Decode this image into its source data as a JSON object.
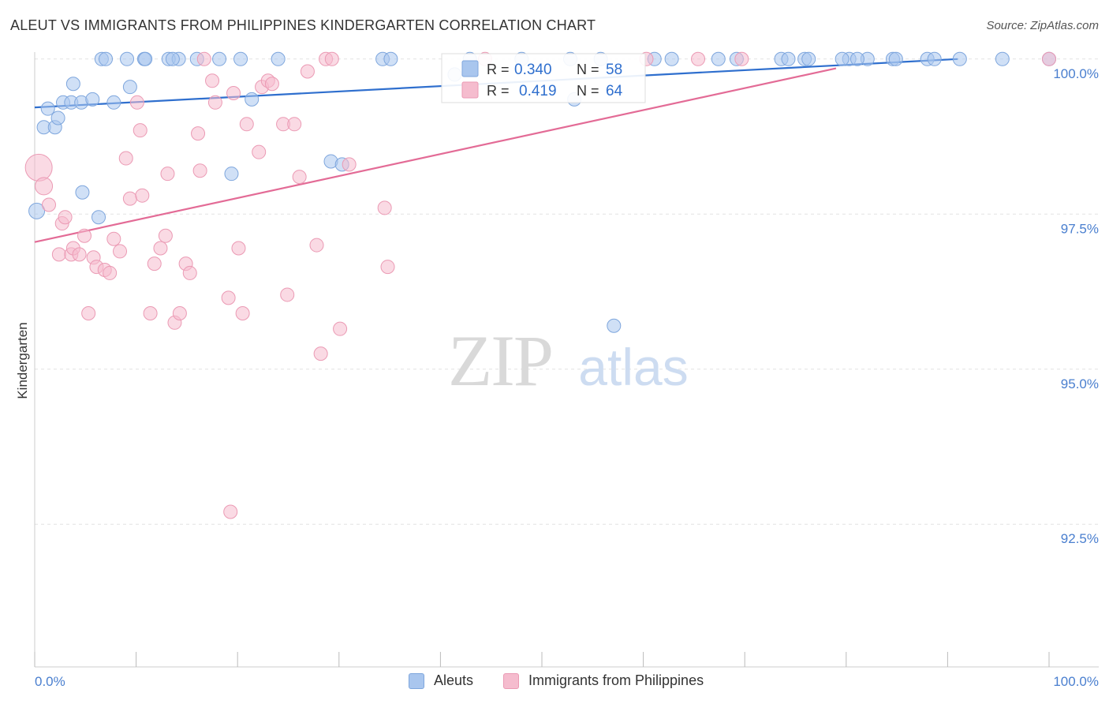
{
  "header": {
    "title": "ALEUT VS IMMIGRANTS FROM PHILIPPINES KINDERGARTEN CORRELATION CHART",
    "source": "Source: ZipAtlas.com"
  },
  "watermark": {
    "zip": "ZIP",
    "atlas": "atlas"
  },
  "colors": {
    "blue_fill": "#a9c6ee",
    "blue_stroke": "#7ea6dd",
    "blue_line": "#2f6fce",
    "pink_fill": "#f5bcce",
    "pink_stroke": "#eb9ab4",
    "pink_line": "#e36b96",
    "tick_label": "#4a7fcf",
    "grid": "#e2e2e2"
  },
  "stats_box": {
    "rows": [
      {
        "r_label": "R =",
        "r_value": "0.340",
        "n_label": "N =",
        "n_value": "58",
        "series": "blue"
      },
      {
        "r_label": "R =",
        "r_value": "0.419",
        "n_label": "N =",
        "n_value": "64",
        "series": "pink"
      }
    ]
  },
  "legend": [
    {
      "label": "Aleuts",
      "series": "blue"
    },
    {
      "label": "Immigrants from Philippines",
      "series": "pink"
    }
  ],
  "chart_data": {
    "type": "scatter",
    "title": "ALEUT VS IMMIGRANTS FROM PHILIPPINES KINDERGARTEN CORRELATION CHART",
    "xlabel": "",
    "ylabel": "Kindergarten",
    "xlim": [
      0,
      100
    ],
    "ylim": [
      90.2,
      100.15
    ],
    "x_tick_labels": [
      {
        "value": 0,
        "label": "0.0%"
      },
      {
        "value": 100,
        "label": "100.0%"
      }
    ],
    "x_minor_ticks": [
      0,
      10,
      20,
      30,
      40,
      50,
      60,
      70,
      80,
      90,
      100
    ],
    "y_ticks": [
      {
        "value": 100,
        "label": "100.0%"
      },
      {
        "value": 97.5,
        "label": "97.5%"
      },
      {
        "value": 95,
        "label": "95.0%"
      },
      {
        "value": 92.5,
        "label": "92.5%"
      }
    ],
    "grid": true,
    "legend_position": "bottom-center",
    "series": [
      {
        "name": "Aleuts",
        "color": "#a9c6ee",
        "R": 0.34,
        "N": 58,
        "trend": {
          "x0": 0,
          "y0": 99.22,
          "x1": 91,
          "y1": 100.0
        },
        "points": [
          [
            0.2,
            97.55
          ],
          [
            1.3,
            99.2
          ],
          [
            0.9,
            98.9
          ],
          [
            2.0,
            98.9
          ],
          [
            2.3,
            99.05
          ],
          [
            2.8,
            99.3
          ],
          [
            3.6,
            99.3
          ],
          [
            3.8,
            99.6
          ],
          [
            4.6,
            99.3
          ],
          [
            5.7,
            99.35
          ],
          [
            7.8,
            99.3
          ],
          [
            4.7,
            97.85
          ],
          [
            6.3,
            97.45
          ],
          [
            9.4,
            99.55
          ],
          [
            21.4,
            99.35
          ],
          [
            19.4,
            98.15
          ],
          [
            29.2,
            98.35
          ],
          [
            30.3,
            98.3
          ],
          [
            6.6,
            100.0
          ],
          [
            7.0,
            100.0
          ],
          [
            9.1,
            100.0
          ],
          [
            10.8,
            100.0
          ],
          [
            10.9,
            100.0
          ],
          [
            13.2,
            100.0
          ],
          [
            14.2,
            100.0
          ],
          [
            13.6,
            100.0
          ],
          [
            16.0,
            100.0
          ],
          [
            18.2,
            100.0
          ],
          [
            20.3,
            100.0
          ],
          [
            24.0,
            100.0
          ],
          [
            34.3,
            100.0
          ],
          [
            35.1,
            100.0
          ],
          [
            42.9,
            100.0
          ],
          [
            48.0,
            100.0
          ],
          [
            52.8,
            100.0
          ],
          [
            55.8,
            100.0
          ],
          [
            61.1,
            100.0
          ],
          [
            62.8,
            100.0
          ],
          [
            67.4,
            100.0
          ],
          [
            69.2,
            100.0
          ],
          [
            73.6,
            100.0
          ],
          [
            74.3,
            100.0
          ],
          [
            75.9,
            100.0
          ],
          [
            76.3,
            100.0
          ],
          [
            80.3,
            100.0
          ],
          [
            82.1,
            100.0
          ],
          [
            79.6,
            100.0
          ],
          [
            84.6,
            100.0
          ],
          [
            84.9,
            100.0
          ],
          [
            81.1,
            100.0
          ],
          [
            88.0,
            100.0
          ],
          [
            88.7,
            100.0
          ],
          [
            91.2,
            100.0
          ],
          [
            95.4,
            100.0
          ],
          [
            100.0,
            100.0
          ],
          [
            53.2,
            99.35
          ],
          [
            57.1,
            95.7
          ],
          [
            41.4,
            99.75
          ]
        ]
      },
      {
        "name": "Immigrants from Philippines",
        "color": "#f5bcce",
        "R": 0.419,
        "N": 64,
        "trend": {
          "x0": 0,
          "y0": 97.05,
          "x1": 79,
          "y1": 99.85
        },
        "points": [
          [
            0.4,
            98.25
          ],
          [
            0.9,
            97.95
          ],
          [
            1.4,
            97.65
          ],
          [
            2.7,
            97.35
          ],
          [
            3.0,
            97.45
          ],
          [
            2.4,
            96.85
          ],
          [
            3.6,
            96.85
          ],
          [
            3.8,
            96.95
          ],
          [
            4.4,
            96.85
          ],
          [
            4.9,
            97.15
          ],
          [
            5.8,
            96.8
          ],
          [
            6.1,
            96.65
          ],
          [
            6.9,
            96.6
          ],
          [
            7.4,
            96.55
          ],
          [
            7.8,
            97.1
          ],
          [
            8.4,
            96.9
          ],
          [
            9.0,
            98.4
          ],
          [
            9.4,
            97.75
          ],
          [
            10.1,
            99.3
          ],
          [
            10.4,
            98.85
          ],
          [
            10.6,
            97.8
          ],
          [
            11.4,
            95.9
          ],
          [
            11.8,
            96.7
          ],
          [
            12.4,
            96.95
          ],
          [
            12.9,
            97.15
          ],
          [
            13.1,
            98.15
          ],
          [
            13.8,
            95.75
          ],
          [
            14.3,
            95.9
          ],
          [
            14.9,
            96.7
          ],
          [
            15.3,
            96.55
          ],
          [
            16.1,
            98.8
          ],
          [
            16.3,
            98.2
          ],
          [
            17.5,
            99.65
          ],
          [
            17.8,
            99.3
          ],
          [
            19.1,
            96.15
          ],
          [
            19.6,
            99.45
          ],
          [
            20.1,
            96.95
          ],
          [
            20.5,
            95.9
          ],
          [
            20.9,
            98.95
          ],
          [
            19.3,
            92.7
          ],
          [
            22.1,
            98.5
          ],
          [
            22.4,
            99.55
          ],
          [
            23.0,
            99.65
          ],
          [
            23.4,
            99.6
          ],
          [
            24.5,
            98.95
          ],
          [
            24.9,
            96.2
          ],
          [
            25.6,
            98.95
          ],
          [
            26.1,
            98.1
          ],
          [
            26.9,
            99.8
          ],
          [
            27.8,
            97.0
          ],
          [
            28.2,
            95.25
          ],
          [
            30.1,
            95.65
          ],
          [
            31.0,
            98.3
          ],
          [
            34.5,
            97.6
          ],
          [
            34.8,
            96.65
          ],
          [
            5.3,
            95.9
          ],
          [
            16.7,
            100.0
          ],
          [
            28.7,
            100.0
          ],
          [
            29.3,
            100.0
          ],
          [
            44.4,
            100.0
          ],
          [
            60.3,
            100.0
          ],
          [
            65.4,
            100.0
          ],
          [
            69.7,
            100.0
          ],
          [
            100.0,
            100.0
          ]
        ]
      }
    ]
  }
}
